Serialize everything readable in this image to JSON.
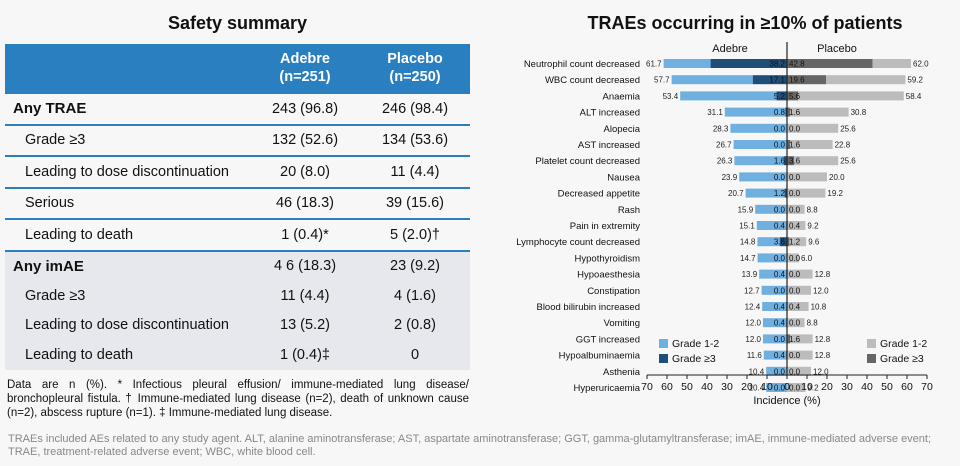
{
  "table": {
    "title": "Safety summary",
    "columns": [
      {
        "name": "Adebre",
        "n": "(n=251)"
      },
      {
        "name": "Placebo",
        "n": "(n=250)"
      }
    ],
    "rows": [
      {
        "label": "Any TRAE",
        "a": "243 (96.8)",
        "b": "246 (98.4)",
        "bold": true,
        "group": "a",
        "first": true
      },
      {
        "label": "Grade ≥3",
        "a": "132 (52.6)",
        "b": "134 (53.6)",
        "group": "a"
      },
      {
        "label": "Leading to dose discontinuation",
        "a": "20 (8.0)",
        "b": "11 (4.4)",
        "group": "a"
      },
      {
        "label": "Serious",
        "a": "46 (18.3)",
        "b": "39 (15.6)",
        "group": "a"
      },
      {
        "label": "Leading to death",
        "a": "1 (0.4)*",
        "b": "5 (2.0)†",
        "group": "a"
      },
      {
        "label": "Any imAE",
        "a": "4 6 (18.3)",
        "b": "23 (9.2)",
        "bold": true,
        "group": "b",
        "first": true
      },
      {
        "label": "Grade ≥3",
        "a": "11 (4.4)",
        "b": "4 (1.6)",
        "group": "b"
      },
      {
        "label": "Leading to dose discontinuation",
        "a": "13 (5.2)",
        "b": "2 (0.8)",
        "group": "b"
      },
      {
        "label": "Leading to death",
        "a": "1 (0.4)‡",
        "b": "0",
        "group": "b"
      }
    ],
    "footnote": "Data are n (%). * Infectious pleural effusion/ immune-mediated lung disease/ bronchopleural fistula. † Immune-mediated lung disease (n=2), death of unknown cause (n=2), abscess rupture (n=1). ‡ Immune-mediated lung disease."
  },
  "footer": "TRAEs included AEs related to any study agent. ALT, alanine aminotransferase; AST, aspartate aminotransferase; GGT, gamma-glutamyltransferase; imAE, immune-mediated adverse event; TRAE, treatment-related adverse event; WBC, white blood cell.",
  "chart_data": {
    "type": "bar",
    "orientation": "horizontal-butterfly",
    "title": "TRAEs occurring in ≥10% of patients",
    "left_label": "Adebre",
    "right_label": "Placebo",
    "xlabel": "Incidence (%)",
    "xlim": [
      -70,
      70
    ],
    "xticks": [
      "70",
      "60",
      "50",
      "40",
      "30",
      "20",
      "10",
      "0",
      "10",
      "20",
      "30",
      "40",
      "50",
      "60",
      "70"
    ],
    "colors": {
      "adebre_g12": "#6fb0e0",
      "adebre_g3": "#1f4e79",
      "placebo_g12": "#bcbcbc",
      "placebo_g3": "#666666"
    },
    "legend_left": [
      "Grade 1-2",
      "Grade ≥3"
    ],
    "legend_right": [
      "Grade 1-2",
      "Grade ≥3"
    ],
    "categories": [
      {
        "name": "Neutrophil count decreased",
        "a_total": 61.7,
        "a_g3": 38.2,
        "p_total": 62.0,
        "p_g3": 42.8
      },
      {
        "name": "WBC count decreased",
        "a_total": 57.7,
        "a_g3": 17.1,
        "p_total": 59.2,
        "p_g3": 19.6
      },
      {
        "name": "Anaemia",
        "a_total": 53.4,
        "a_g3": 5.2,
        "p_total": 58.4,
        "p_g3": 5.6
      },
      {
        "name": "ALT increased",
        "a_total": 31.1,
        "a_g3": 0.8,
        "p_total": 30.8,
        "p_g3": 1.6
      },
      {
        "name": "Alopecia",
        "a_total": 28.3,
        "a_g3": 0.0,
        "p_total": 25.6,
        "p_g3": 0.0
      },
      {
        "name": "AST increased",
        "a_total": 26.7,
        "a_g3": 0.0,
        "p_total": 22.8,
        "p_g3": 1.6
      },
      {
        "name": "Platelet count decreased",
        "a_total": 26.3,
        "a_g3": 1.6,
        "p_total": 25.6,
        "p_g3": 3.6
      },
      {
        "name": "Nausea",
        "a_total": 23.9,
        "a_g3": 0.0,
        "p_total": 20.0,
        "p_g3": 0.0
      },
      {
        "name": "Decreased appetite",
        "a_total": 20.7,
        "a_g3": 1.2,
        "p_total": 19.2,
        "p_g3": 0.0
      },
      {
        "name": "Rash",
        "a_total": 15.9,
        "a_g3": 0.0,
        "p_total": 8.8,
        "p_g3": 0.0
      },
      {
        "name": "Pain in extremity",
        "a_total": 15.1,
        "a_g3": 0.4,
        "p_total": 9.2,
        "p_g3": 0.4
      },
      {
        "name": "Lymphocyte count decreased",
        "a_total": 14.8,
        "a_g3": 3.6,
        "p_total": 9.6,
        "p_g3": 1.2
      },
      {
        "name": "Hypothyroidism",
        "a_total": 14.7,
        "a_g3": 0.0,
        "p_total": 6.0,
        "p_g3": 0.0
      },
      {
        "name": "Hypoaesthesia",
        "a_total": 13.9,
        "a_g3": 0.4,
        "p_total": 12.8,
        "p_g3": 0.0
      },
      {
        "name": "Constipation",
        "a_total": 12.7,
        "a_g3": 0.0,
        "p_total": 12.0,
        "p_g3": 0.0
      },
      {
        "name": "Blood bilirubin increased",
        "a_total": 12.4,
        "a_g3": 0.4,
        "p_total": 10.8,
        "p_g3": 0.4
      },
      {
        "name": "Vomiting",
        "a_total": 12.0,
        "a_g3": 0.4,
        "p_total": 8.8,
        "p_g3": 0.0
      },
      {
        "name": "GGT increased",
        "a_total": 12.0,
        "a_g3": 0.0,
        "p_total": 12.8,
        "p_g3": 1.6
      },
      {
        "name": "Hypoalbuminaemia",
        "a_total": 11.6,
        "a_g3": 0.4,
        "p_total": 12.8,
        "p_g3": 0.0
      },
      {
        "name": "Asthenia",
        "a_total": 10.4,
        "a_g3": 0.0,
        "p_total": 12.0,
        "p_g3": 0.0
      },
      {
        "name": "Hyperuricaemia",
        "a_total": 10.4,
        "a_g3": 0.0,
        "p_total": 9.2,
        "p_g3": 0.0
      }
    ]
  }
}
